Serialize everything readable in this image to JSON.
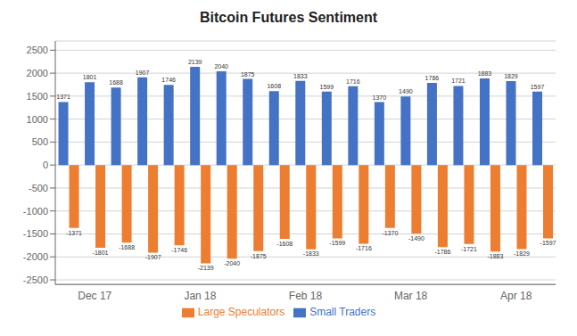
{
  "chart_data": {
    "type": "bar",
    "title": "Bitcoin Futures Sentiment",
    "categories": [
      null,
      "Dec 17",
      null,
      null,
      null,
      "Jan 18",
      null,
      null,
      null,
      "Feb 18",
      null,
      null,
      null,
      "Mar 18",
      null,
      null,
      null,
      "Apr 18",
      null
    ],
    "series": [
      {
        "name": "Small Traders",
        "color": "#4472C4",
        "values": [
          1371,
          1801,
          1688,
          1907,
          1746,
          2139,
          2040,
          1875,
          1608,
          1833,
          1599,
          1716,
          1370,
          1490,
          1786,
          1721,
          1883,
          1829,
          1597
        ]
      },
      {
        "name": "Large Speculators",
        "color": "#ED7D31",
        "values": [
          -1371,
          -1801,
          -1688,
          -1907,
          -1746,
          -2139,
          -2040,
          -1875,
          -1608,
          -1833,
          -1599,
          -1716,
          -1370,
          -1490,
          -1786,
          -1721,
          -1883,
          -1829,
          -1597
        ]
      }
    ],
    "ylim": [
      -2600,
      2700
    ],
    "yticks": [
      -2500,
      -2000,
      -1500,
      -1000,
      -500,
      0,
      500,
      1000,
      1500,
      2000,
      2500
    ],
    "grid": true,
    "legend": "bottom",
    "data_labels": true
  }
}
